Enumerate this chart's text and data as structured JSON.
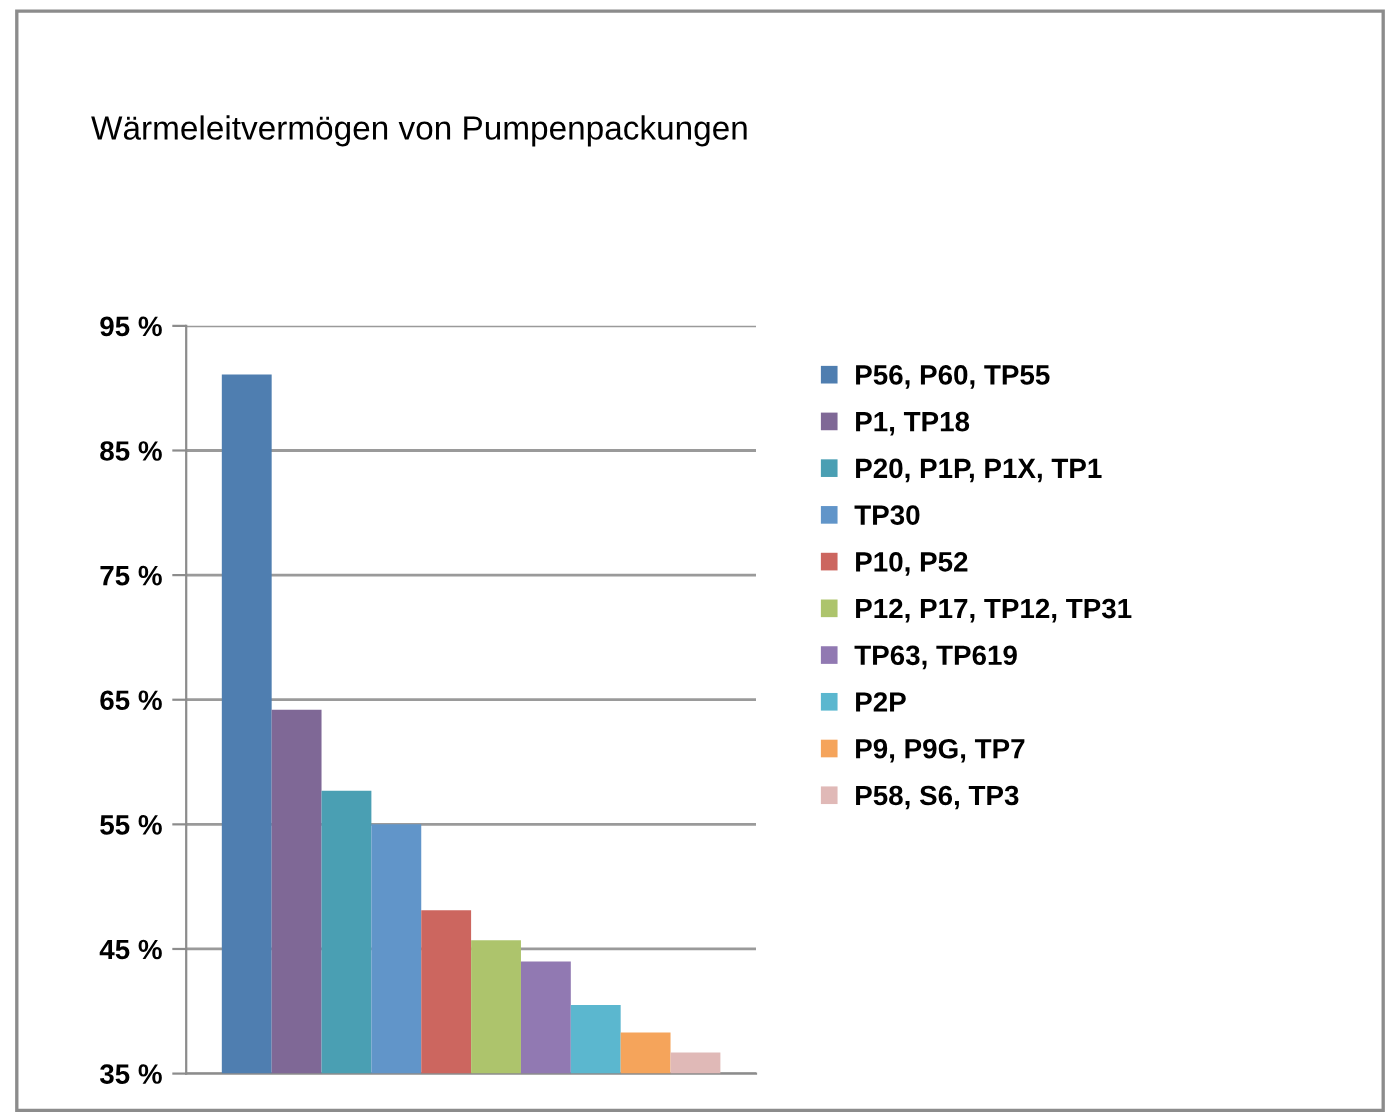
{
  "chart_data": {
    "type": "bar",
    "title": "Wärmeleitvermögen von Pumpenpackungen",
    "categories": [
      null
    ],
    "series": [
      {
        "name": "P56, P60, TP55",
        "color": "#4f7eb0",
        "values": [
          91.1
        ]
      },
      {
        "name": "P1, TP18",
        "color": "#7f6896",
        "values": [
          64.2
        ]
      },
      {
        "name": "P20, P1P, P1X, TP1",
        "color": "#4a9fb3",
        "values": [
          57.7
        ]
      },
      {
        "name": "TP30",
        "color": "#6195c9",
        "values": [
          55.0
        ]
      },
      {
        "name": "P10, P52",
        "color": "#cc665f",
        "values": [
          48.1
        ]
      },
      {
        "name": "P12, P17, TP12, TP31",
        "color": "#adc46c",
        "values": [
          45.7
        ]
      },
      {
        "name": "TP63, TP619",
        "color": "#9179b2",
        "values": [
          44.0
        ]
      },
      {
        "name": "P2P",
        "color": "#5bb7cf",
        "values": [
          40.5
        ]
      },
      {
        "name": "P9, P9G, TP7",
        "color": "#f5a45b",
        "values": [
          38.3
        ]
      },
      {
        "name": "P58, S6, TP3",
        "color": "#e0b9b7",
        "values": [
          36.7
        ]
      }
    ],
    "ylim": [
      35,
      95
    ],
    "yticks": [
      {
        "value": 35,
        "label": "35 %"
      },
      {
        "value": 45,
        "label": "45 %"
      },
      {
        "value": 55,
        "label": "55 %"
      },
      {
        "value": 65,
        "label": "65 %"
      },
      {
        "value": 75,
        "label": "75 %"
      },
      {
        "value": 85,
        "label": "85 %"
      },
      {
        "value": 95,
        "label": "95 %"
      }
    ],
    "grid": "y",
    "legend": "right"
  }
}
